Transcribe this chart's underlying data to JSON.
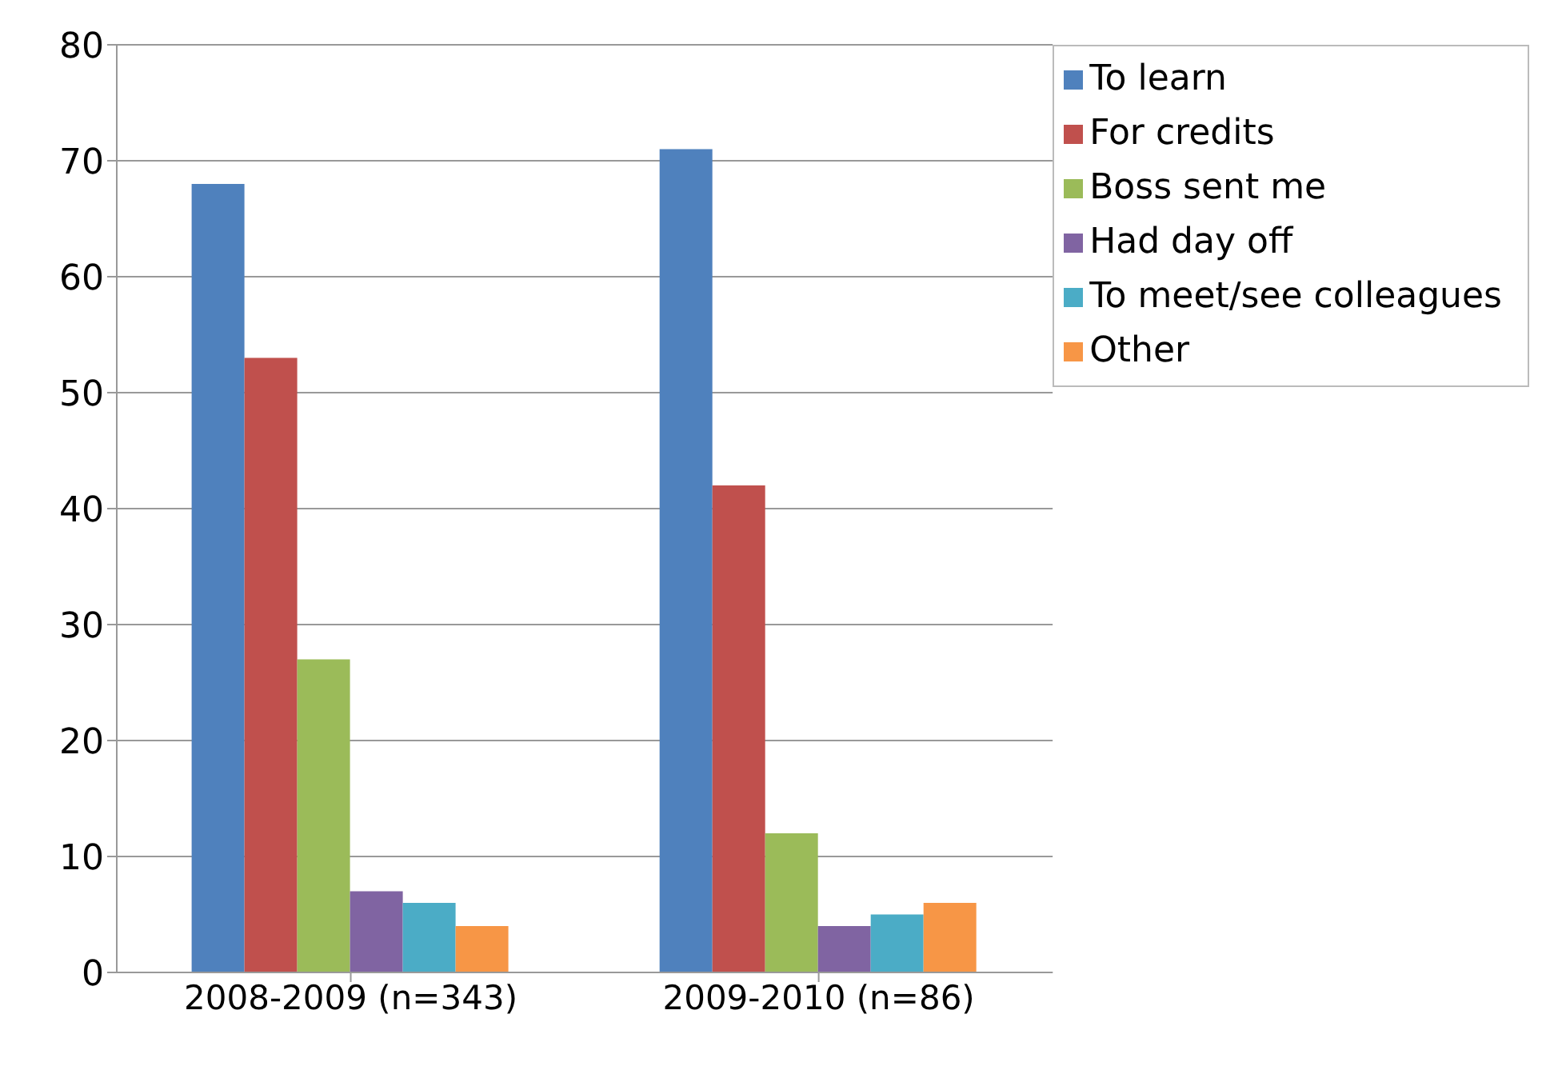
{
  "chart_data": {
    "type": "bar",
    "categories": [
      "2008-2009 (n=343)",
      "2009-2010 (n=86)"
    ],
    "series": [
      {
        "name": "To learn",
        "color": "#4f81bd",
        "values": [
          68,
          71
        ]
      },
      {
        "name": "For credits",
        "color": "#c0504d",
        "values": [
          53,
          42
        ]
      },
      {
        "name": "Boss sent me",
        "color": "#9bbb59",
        "values": [
          27,
          12
        ]
      },
      {
        "name": "Had day off",
        "color": "#8064a2",
        "values": [
          7,
          4
        ]
      },
      {
        "name": "To meet/see colleagues",
        "color": "#4bacc6",
        "values": [
          6,
          5
        ]
      },
      {
        "name": "Other",
        "color": "#f79646",
        "values": [
          4,
          6
        ]
      }
    ],
    "ylim": [
      0,
      80
    ],
    "yticks": [
      0,
      10,
      20,
      30,
      40,
      50,
      60,
      70,
      80
    ],
    "grid": "y",
    "legend": "top right"
  }
}
